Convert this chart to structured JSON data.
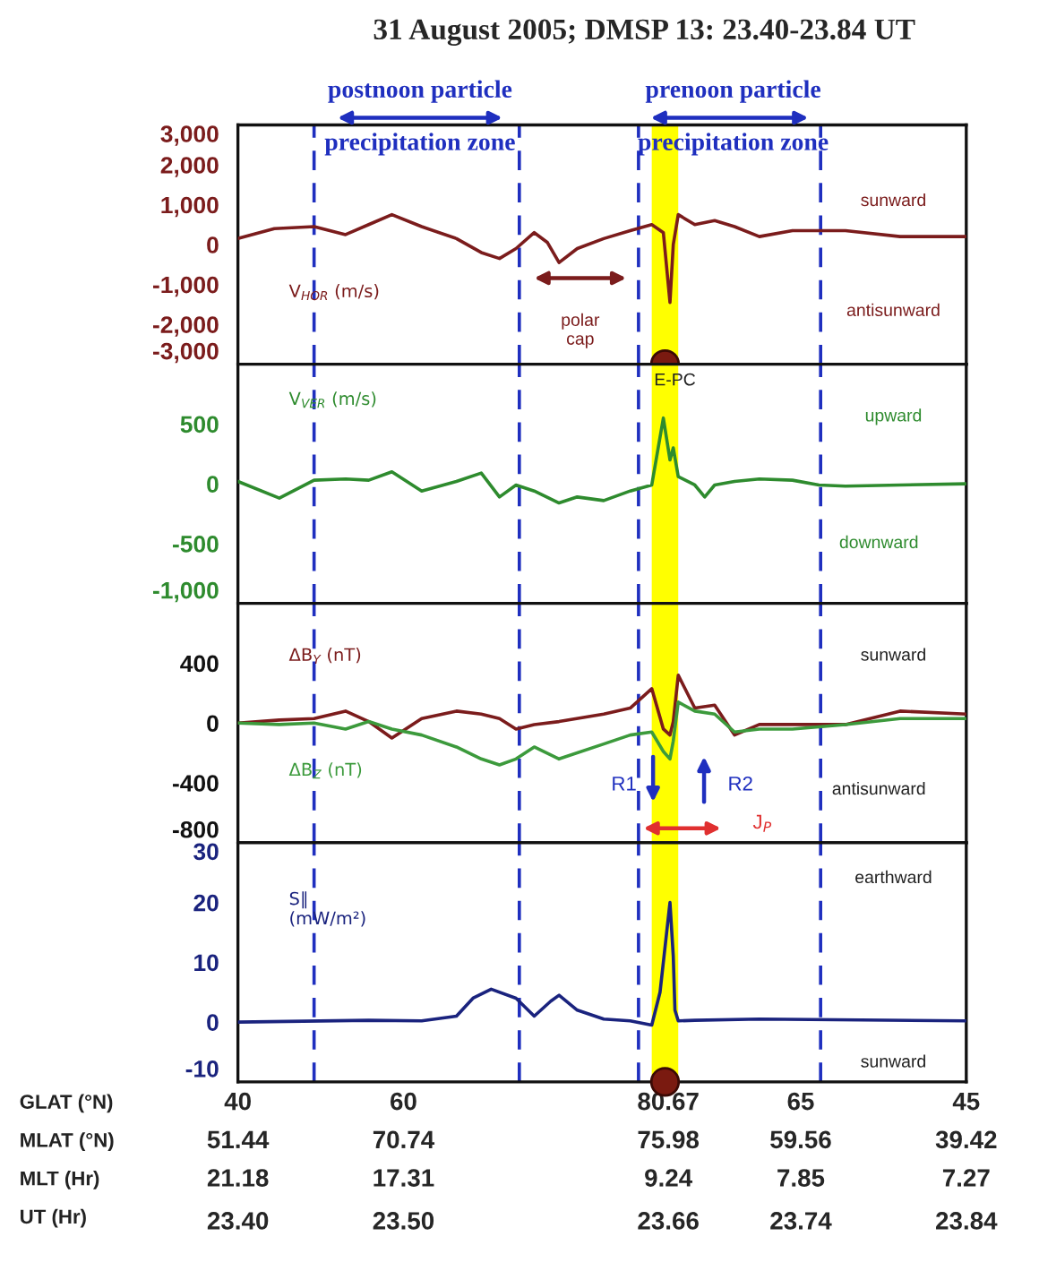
{
  "chart_data": [
    {
      "type": "line",
      "title": "31 August 2005; DMSP 13: 23.40-23.84 UT",
      "xlim": [
        23.4,
        23.84
      ],
      "tick_labels": "y",
      "ylim": [
        -3000,
        3000
      ],
      "yticks": [
        {
          "value": -3000,
          "label": "-3,000"
        },
        {
          "value": -2000,
          "label": "-2,000"
        },
        {
          "value": -1000,
          "label": "-1,000"
        },
        0,
        {
          "value": 1000,
          "label": "1,000"
        },
        {
          "value": 2000,
          "label": "2,000"
        },
        {
          "value": 3000,
          "label": "3,000"
        }
      ],
      "series": [
        {
          "name": "V$_{HOR}$ (m/s)",
          "color": "#7b1c1c",
          "x": [
            23.4,
            23.422,
            23.446,
            23.465,
            23.479,
            23.493,
            23.511,
            23.532,
            23.547,
            23.558,
            23.568,
            23.579,
            23.587,
            23.594,
            23.605,
            23.621,
            23.637,
            23.65,
            23.657,
            23.661,
            23.663,
            23.666,
            23.676,
            23.688,
            23.7,
            23.715,
            23.735,
            23.767,
            23.8,
            23.84
          ],
          "values": [
            150,
            400,
            450,
            250,
            500,
            750,
            450,
            150,
            -200,
            -350,
            -100,
            300,
            50,
            -450,
            -100,
            150,
            350,
            500,
            300,
            -1450,
            0,
            750,
            500,
            600,
            450,
            200,
            350,
            350,
            200,
            200
          ]
        }
      ],
      "bands": [
        {
          "axis": "x",
          "from": 23.65,
          "to": 23.666,
          "color": "#ffff00"
        }
      ],
      "ref_lines": [
        {
          "axis": "x",
          "value": 23.446,
          "color": "#1f2fbf",
          "line_style": "dashed"
        },
        {
          "axis": "x",
          "value": 23.57,
          "color": "#1f2fbf",
          "line_style": "dashed"
        },
        {
          "axis": "x",
          "value": 23.642,
          "color": "#1f2fbf",
          "line_style": "dashed"
        },
        {
          "axis": "x",
          "value": 23.752,
          "color": "#1f2fbf",
          "line_style": "dashed"
        }
      ],
      "annotations": [
        "postnoon particle",
        "precipitation zone",
        "prenoon particle",
        "precipitation zone",
        "sunward",
        "antisunward",
        "polar\ncap"
      ]
    },
    {
      "type": "line",
      "xlim": [
        23.4,
        23.84
      ],
      "tick_labels": "y",
      "ylim": [
        -1000,
        1000
      ],
      "yticks": [
        {
          "value": -1000,
          "label": "-1,000"
        },
        -500,
        0,
        500
      ],
      "series": [
        {
          "name": "V$_{VER}$ (m/s)",
          "color": "#2e8b2e",
          "x": [
            23.4,
            23.425,
            23.446,
            23.465,
            23.479,
            23.493,
            23.511,
            23.532,
            23.547,
            23.558,
            23.568,
            23.579,
            23.594,
            23.605,
            23.621,
            23.637,
            23.65,
            23.657,
            23.661,
            23.663,
            23.666,
            23.676,
            23.682,
            23.688,
            23.7,
            23.715,
            23.735,
            23.751,
            23.767,
            23.8,
            23.84
          ],
          "values": [
            20,
            -120,
            30,
            40,
            30,
            100,
            -60,
            20,
            90,
            -110,
            -10,
            -60,
            -160,
            -110,
            -140,
            -60,
            -10,
            550,
            200,
            300,
            60,
            -10,
            -110,
            -10,
            20,
            40,
            30,
            -10,
            -20,
            -10,
            0
          ]
        }
      ],
      "bands": [
        {
          "axis": "x",
          "from": 23.65,
          "to": 23.666,
          "color": "#ffff00"
        }
      ],
      "ref_lines": [
        {
          "axis": "x",
          "value": 23.446,
          "color": "#1f2fbf",
          "line_style": "dashed"
        },
        {
          "axis": "x",
          "value": 23.57,
          "color": "#1f2fbf",
          "line_style": "dashed"
        },
        {
          "axis": "x",
          "value": 23.642,
          "color": "#1f2fbf",
          "line_style": "dashed"
        },
        {
          "axis": "x",
          "value": 23.752,
          "color": "#1f2fbf",
          "line_style": "dashed"
        }
      ],
      "annotations": [
        "E-PC",
        "upward",
        "downward"
      ]
    },
    {
      "type": "line",
      "xlim": [
        23.4,
        23.84
      ],
      "tick_labels": "y",
      "ylim": [
        -800,
        800
      ],
      "yticks": [
        -800,
        -400,
        0,
        400
      ],
      "series": [
        {
          "name": "ΔB$_{Y}$ (nT)",
          "color": "#7b1c1c",
          "x": [
            23.4,
            23.425,
            23.446,
            23.465,
            23.479,
            23.493,
            23.511,
            23.532,
            23.547,
            23.558,
            23.568,
            23.579,
            23.594,
            23.621,
            23.637,
            23.65,
            23.657,
            23.661,
            23.663,
            23.666,
            23.676,
            23.688,
            23.7,
            23.715,
            23.735,
            23.767,
            23.8,
            23.84
          ],
          "values": [
            0,
            20,
            30,
            80,
            10,
            -100,
            30,
            80,
            60,
            30,
            -40,
            -10,
            10,
            60,
            100,
            230,
            -40,
            -80,
            10,
            320,
            100,
            120,
            -80,
            -10,
            -10,
            -10,
            80,
            60
          ]
        },
        {
          "name": "ΔB$_{Z}$ (nT)",
          "color": "#3c9a3c",
          "x": [
            23.4,
            23.425,
            23.446,
            23.465,
            23.479,
            23.493,
            23.511,
            23.532,
            23.547,
            23.558,
            23.568,
            23.579,
            23.594,
            23.621,
            23.637,
            23.65,
            23.657,
            23.661,
            23.663,
            23.666,
            23.676,
            23.688,
            23.7,
            23.715,
            23.735,
            23.767,
            23.8,
            23.84
          ],
          "values": [
            0,
            -10,
            0,
            -40,
            10,
            -40,
            -80,
            -160,
            -240,
            -280,
            -240,
            -160,
            -240,
            -140,
            -80,
            -60,
            -190,
            -240,
            -120,
            140,
            80,
            60,
            -60,
            -40,
            -40,
            -10,
            30,
            30
          ]
        }
      ],
      "bands": [
        {
          "axis": "x",
          "from": 23.65,
          "to": 23.666,
          "color": "#ffff00"
        }
      ],
      "ref_lines": [
        {
          "axis": "x",
          "value": 23.446,
          "color": "#1f2fbf",
          "line_style": "dashed"
        },
        {
          "axis": "x",
          "value": 23.57,
          "color": "#1f2fbf",
          "line_style": "dashed"
        },
        {
          "axis": "x",
          "value": 23.642,
          "color": "#1f2fbf",
          "line_style": "dashed"
        },
        {
          "axis": "x",
          "value": 23.752,
          "color": "#1f2fbf",
          "line_style": "dashed"
        }
      ],
      "annotations": [
        "sunward",
        "antisunward",
        "R1",
        "R2",
        "J$_{P}$"
      ]
    },
    {
      "type": "line",
      "xlim": [
        23.4,
        23.84
      ],
      "xticks": [
        {
          "value": 23.4,
          "label": "23.40"
        },
        {
          "value": 23.5,
          "label": "23.50"
        },
        23.66,
        23.74,
        23.84
      ],
      "ylim": [
        -10,
        30
      ],
      "yticks": [
        -10,
        0,
        10,
        20,
        30
      ],
      "series": [
        {
          "name": "S∥\n(mW/m²)",
          "color": "#1a237e",
          "x": [
            23.4,
            23.479,
            23.511,
            23.532,
            23.542,
            23.553,
            23.568,
            23.579,
            23.589,
            23.594,
            23.605,
            23.621,
            23.637,
            23.65,
            23.655,
            23.657,
            23.661,
            23.663,
            23.664,
            23.666,
            23.676,
            23.715,
            23.84
          ],
          "values": [
            0,
            0.3,
            0.2,
            1,
            4,
            5.5,
            4,
            1,
            3.5,
            4.5,
            2,
            0.5,
            0.2,
            -0.5,
            5,
            10,
            20,
            11,
            2,
            0.2,
            0.3,
            0.5,
            0.2
          ]
        }
      ],
      "bands": [
        {
          "axis": "x",
          "from": 23.65,
          "to": 23.666,
          "color": "#ffff00"
        }
      ],
      "ref_lines": [
        {
          "axis": "x",
          "value": 23.446,
          "color": "#1f2fbf",
          "line_style": "dashed"
        },
        {
          "axis": "x",
          "value": 23.57,
          "color": "#1f2fbf",
          "line_style": "dashed"
        },
        {
          "axis": "x",
          "value": 23.642,
          "color": "#1f2fbf",
          "line_style": "dashed"
        },
        {
          "axis": "x",
          "value": 23.752,
          "color": "#1f2fbf",
          "line_style": "dashed"
        }
      ],
      "annotations": [
        "earthward",
        "sunward",
        "GLAT (°N)",
        "MLAT (°N)",
        "MLT (Hr)",
        "UT (Hr)",
        "40",
        "60",
        "80.67",
        "65",
        "45",
        "51.44",
        "70.74",
        "75.98",
        "59.56",
        "39.42",
        "21.18",
        "17.31",
        "9.24",
        "7.85",
        "7.27"
      ]
    }
  ]
}
